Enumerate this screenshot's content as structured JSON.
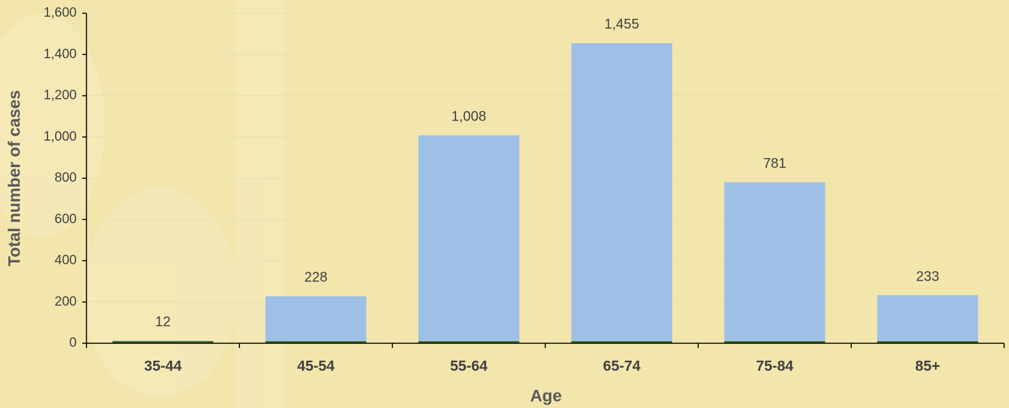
{
  "chart_data": {
    "type": "bar",
    "x_label": "Age",
    "y_label": "Total number of cases",
    "categories": [
      "35-44",
      "45-54",
      "55-64",
      "65-74",
      "75-84",
      "85+"
    ],
    "values": [
      12,
      228,
      1008,
      1455,
      781,
      233
    ],
    "value_labels": [
      "12",
      "228",
      "1,008",
      "1,455",
      "781",
      "233"
    ],
    "color": "#9fc0e6",
    "ylim": [
      0,
      1600
    ],
    "yticks": [
      0,
      200,
      400,
      600,
      800,
      {
        "value": 1000,
        "label": "1,000"
      },
      {
        "value": 1200,
        "label": "1,200"
      },
      {
        "value": 1400,
        "label": "1,400"
      },
      {
        "value": 1600,
        "label": "1,600"
      }
    ],
    "grid": true
  }
}
